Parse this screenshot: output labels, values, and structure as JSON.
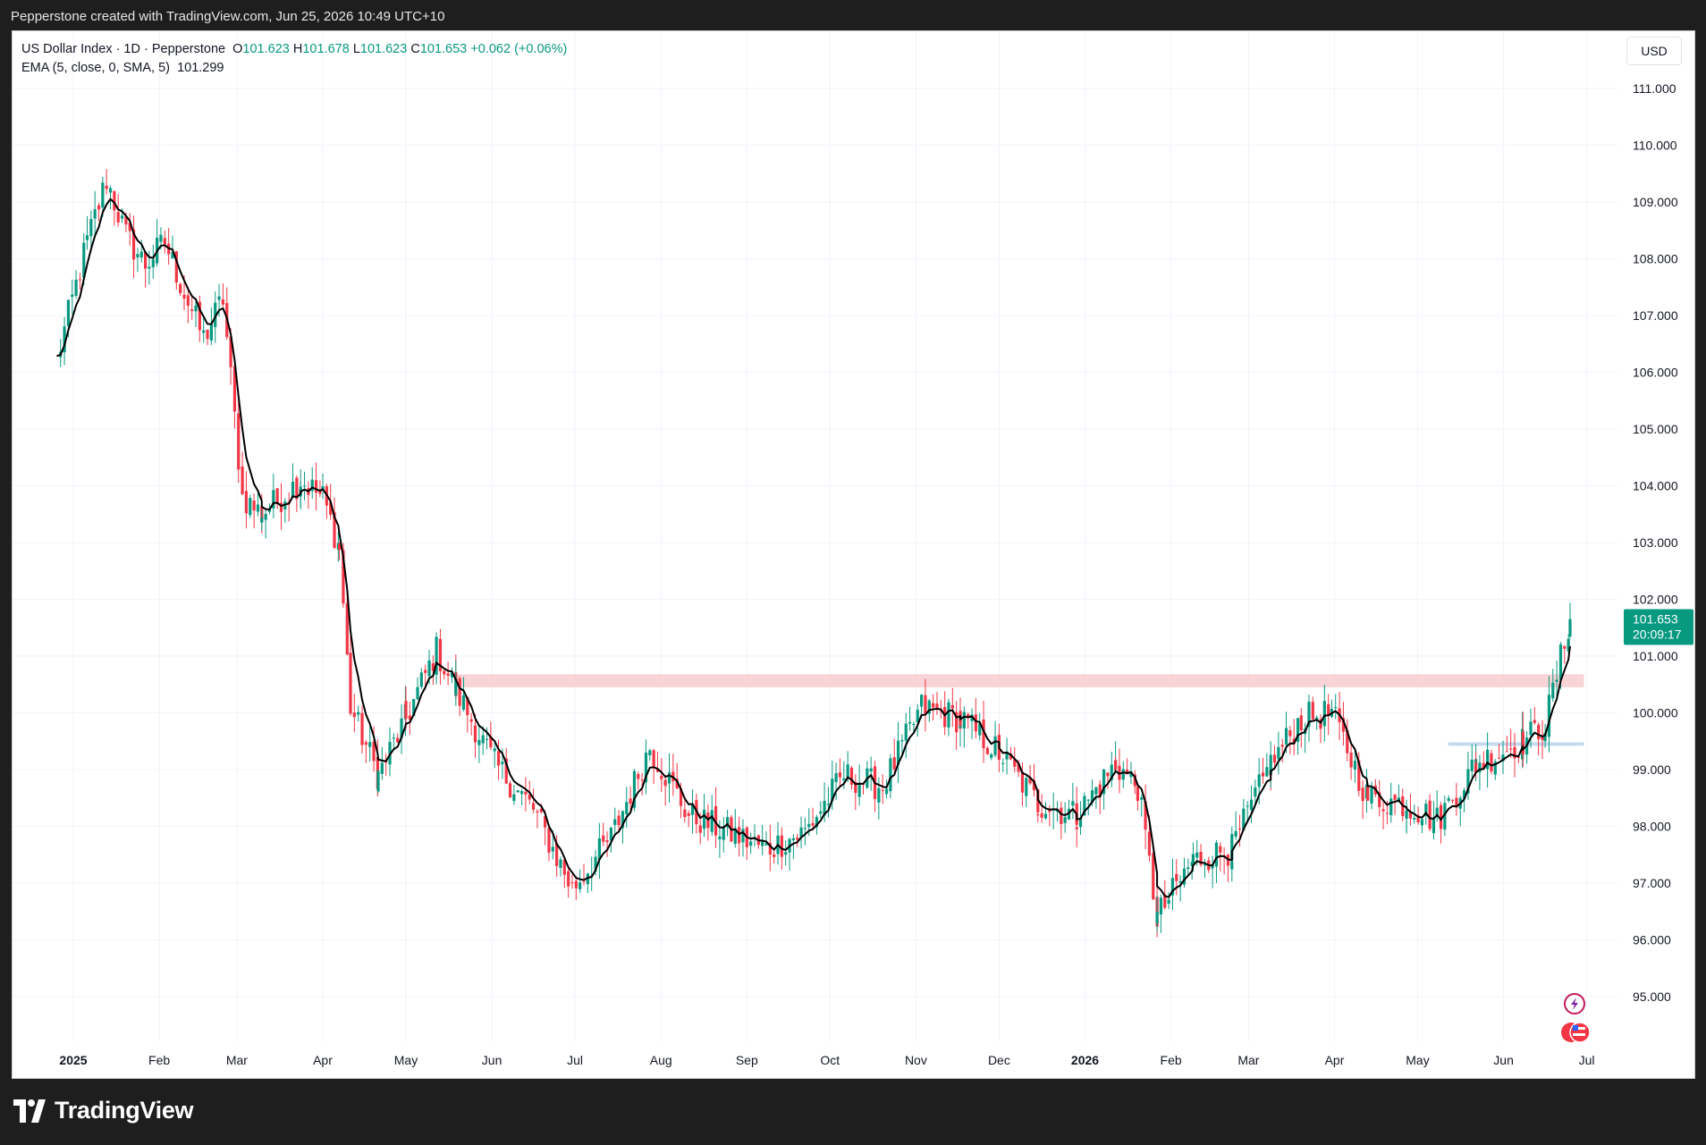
{
  "header": {
    "caption": "Pepperstone created with TradingView.com, Jun 25, 2026 10:49 UTC+10"
  },
  "legend": {
    "symbol": "US Dollar Index · 1D · Pepperstone",
    "o_label": "O",
    "o_value": "101.623",
    "h_label": "H",
    "h_value": "101.678",
    "l_label": "L",
    "l_value": "101.623",
    "c_label": "C",
    "c_value": "101.653",
    "change": "+0.062 (+0.06%)",
    "indicator": "EMA (5, close, 0, SMA, 5)",
    "indicator_value": "101.299"
  },
  "currency_button": "USD",
  "price_tag": {
    "price": "101.653",
    "countdown": "20:09:17"
  },
  "brand": {
    "name": "TradingView"
  },
  "colors": {
    "up": "#089981",
    "down": "#f23645",
    "ema": "#000000",
    "zone": "#f7c5c8",
    "zone2": "#bcd6f0"
  },
  "icons": {
    "flash": "lightning-icon",
    "flag": "us-flag-icon"
  },
  "chart_data": {
    "type": "candlestick",
    "y_ticks": [
      "95.000",
      "96.000",
      "97.000",
      "98.000",
      "99.000",
      "100.000",
      "101.000",
      "102.000",
      "103.000",
      "104.000",
      "105.000",
      "106.000",
      "107.000",
      "108.000",
      "109.000",
      "110.000",
      "111.000"
    ],
    "x_ticks": [
      "2025",
      "Feb",
      "Mar",
      "Apr",
      "May",
      "Jun",
      "Jul",
      "Aug",
      "Sep",
      "Oct",
      "Nov",
      "Dec",
      "2026",
      "Feb",
      "Mar",
      "Apr",
      "May",
      "Jun",
      "Jul"
    ],
    "ylim": [
      94.2,
      112.0
    ],
    "resistance_zone": {
      "from": "2025-05-19",
      "to": "2026-06-30",
      "low": 100.45,
      "high": 100.68
    },
    "support_line": {
      "from": "2026-05-12",
      "to": "2026-06-30",
      "value": 99.45
    },
    "approx_close_path": [
      [
        "2024-12-26",
        106.2
      ],
      [
        "2025-01-06",
        108.3
      ],
      [
        "2025-01-13",
        109.4
      ],
      [
        "2025-01-20",
        108.4
      ],
      [
        "2025-01-27",
        107.9
      ],
      [
        "2025-02-03",
        108.3
      ],
      [
        "2025-02-10",
        107.4
      ],
      [
        "2025-02-17",
        106.6
      ],
      [
        "2025-02-24",
        107.3
      ],
      [
        "2025-03-03",
        103.8
      ],
      [
        "2025-03-10",
        103.5
      ],
      [
        "2025-03-24",
        104.1
      ],
      [
        "2025-04-01",
        103.8
      ],
      [
        "2025-04-07",
        102.9
      ],
      [
        "2025-04-11",
        100.1
      ],
      [
        "2025-04-21",
        98.9
      ],
      [
        "2025-05-01",
        99.9
      ],
      [
        "2025-05-12",
        101.1
      ],
      [
        "2025-05-19",
        100.4
      ],
      [
        "2025-06-02",
        99.1
      ],
      [
        "2025-06-16",
        98.3
      ],
      [
        "2025-06-30",
        96.9
      ],
      [
        "2025-07-14",
        97.8
      ],
      [
        "2025-07-28",
        99.4
      ],
      [
        "2025-08-11",
        98.2
      ],
      [
        "2025-08-25",
        97.9
      ],
      [
        "2025-09-08",
        97.6
      ],
      [
        "2025-09-22",
        97.9
      ],
      [
        "2025-10-06",
        98.9
      ],
      [
        "2025-10-20",
        98.7
      ],
      [
        "2025-11-03",
        100.1
      ],
      [
        "2025-11-17",
        99.9
      ],
      [
        "2025-12-01",
        99.3
      ],
      [
        "2025-12-15",
        98.4
      ],
      [
        "2025-12-29",
        98.2
      ],
      [
        "2026-01-12",
        99.1
      ],
      [
        "2026-01-20",
        98.7
      ],
      [
        "2026-01-27",
        96.4
      ],
      [
        "2026-02-09",
        97.4
      ],
      [
        "2026-02-23",
        97.6
      ],
      [
        "2026-03-09",
        99.1
      ],
      [
        "2026-03-20",
        99.9
      ],
      [
        "2026-03-31",
        100.0
      ],
      [
        "2026-04-13",
        98.5
      ],
      [
        "2026-04-27",
        98.4
      ],
      [
        "2026-05-08",
        98.1
      ],
      [
        "2026-05-22",
        99.1
      ],
      [
        "2026-06-08",
        99.5
      ],
      [
        "2026-06-16",
        99.8
      ],
      [
        "2026-06-25",
        101.65
      ]
    ]
  }
}
